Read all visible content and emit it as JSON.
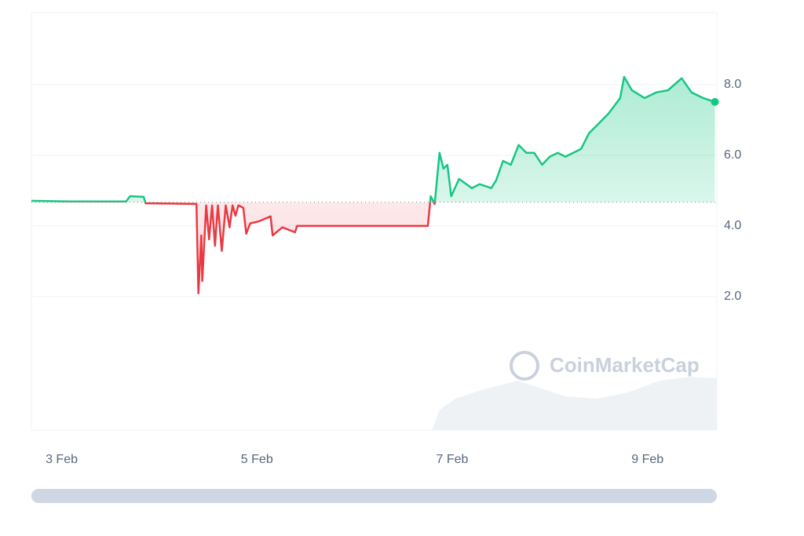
{
  "chart_data": {
    "type": "line",
    "x": [
      2.69,
      3.09,
      3.66,
      3.7,
      3.84,
      3.86,
      4.38,
      4.4,
      4.43,
      4.44,
      4.48,
      4.51,
      4.54,
      4.57,
      4.6,
      4.64,
      4.68,
      4.72,
      4.75,
      4.78,
      4.81,
      4.86,
      4.89,
      4.93,
      5.02,
      5.14,
      5.16,
      5.26,
      5.39,
      5.41,
      6.75,
      6.78,
      6.82,
      6.87,
      6.91,
      6.95,
      6.99,
      7.07,
      7.2,
      7.28,
      7.4,
      7.45,
      7.52,
      7.6,
      7.68,
      7.76,
      7.84,
      7.92,
      8.0,
      8.08,
      8.16,
      8.32,
      8.4,
      8.48,
      8.6,
      8.72,
      8.76,
      8.84,
      8.97,
      9.09,
      9.21,
      9.35,
      9.45,
      9.57,
      9.69
    ],
    "values": [
      4.71,
      4.69,
      4.69,
      4.84,
      4.82,
      4.64,
      4.62,
      2.09,
      3.73,
      2.44,
      4.58,
      3.62,
      4.58,
      3.44,
      4.58,
      3.29,
      4.58,
      3.96,
      4.58,
      4.29,
      4.58,
      4.51,
      3.78,
      4.07,
      4.13,
      4.27,
      3.73,
      3.96,
      3.82,
      4.0,
      4.0,
      4.84,
      4.62,
      6.07,
      5.62,
      5.73,
      4.84,
      5.33,
      5.07,
      5.18,
      5.07,
      5.29,
      5.84,
      5.73,
      6.29,
      6.07,
      6.07,
      5.73,
      5.96,
      6.07,
      5.96,
      6.18,
      6.62,
      6.84,
      7.18,
      7.62,
      8.22,
      7.84,
      7.62,
      7.78,
      7.84,
      8.18,
      7.78,
      7.62,
      7.51
    ],
    "baseline": 4.67,
    "up_color": "#16c784",
    "down_color": "#ea3943",
    "xlim": [
      2.69,
      9.71
    ],
    "xticks": [
      {
        "value": 3,
        "label": "3 Feb"
      },
      {
        "value": 5,
        "label": "5 Feb"
      },
      {
        "value": 7,
        "label": "7 Feb"
      },
      {
        "value": 9,
        "label": "9 Feb"
      }
    ],
    "ylim": [
      -1.78,
      10.04
    ],
    "yticks": [
      {
        "value": 2,
        "label": "2.0"
      },
      {
        "value": 4,
        "label": "4.0"
      },
      {
        "value": 6,
        "label": "6.0"
      },
      {
        "value": 8,
        "label": "8.0"
      }
    ],
    "grid": true,
    "watermark": "CoinMarketCap"
  }
}
